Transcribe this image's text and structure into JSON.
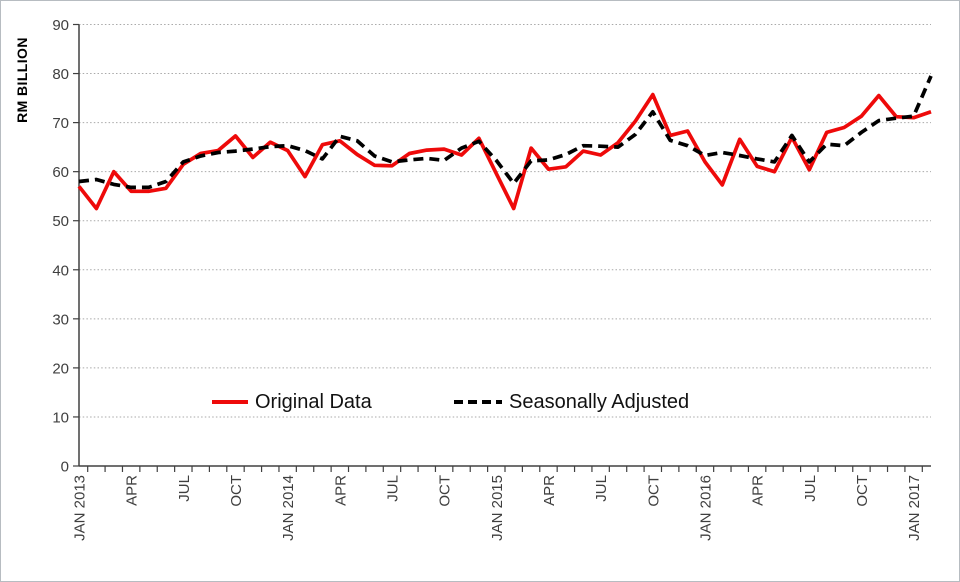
{
  "figure": {
    "background": "#ffffff",
    "border_color": "#b7bcc1",
    "axis_color": "#404040",
    "gridline_color": "#a9a9a9",
    "tick_label_color": "#3f3f3f"
  },
  "chart_data": {
    "type": "line",
    "title": "",
    "ylabel": "RM BILLION",
    "xlabel": "",
    "ylim": [
      0,
      90
    ],
    "ytick_step": 10,
    "y_tick_labels": [
      "0",
      "10",
      "20",
      "30",
      "40",
      "50",
      "60",
      "70",
      "80",
      "90"
    ],
    "grid": "horizontal-dotted",
    "n_months": 50,
    "x_range": "JAN 2013 to FEB 2017, monthly",
    "x_label_interval": 3,
    "x_tick_labels": [
      "JAN 2013",
      "APR",
      "JUL",
      "OCT",
      "JAN 2014",
      "APR",
      "JUL",
      "OCT",
      "JAN 2015",
      "APR",
      "JUL",
      "OCT",
      "JAN 2016",
      "APR",
      "JUL",
      "OCT",
      "JAN 2017"
    ],
    "legend_position": "inside-bottom-center",
    "series": [
      {
        "name": "Original Data",
        "style": "solid",
        "color": "#ee0a0a",
        "values": [
          57.0,
          52.5,
          60.0,
          56.0,
          56.0,
          56.6,
          61.5,
          63.7,
          64.3,
          67.3,
          62.9,
          66.0,
          64.3,
          59.0,
          65.5,
          66.3,
          63.5,
          61.3,
          61.2,
          63.7,
          64.4,
          64.6,
          63.4,
          66.8,
          59.6,
          52.5,
          64.8,
          60.5,
          61.0,
          64.2,
          63.4,
          65.9,
          70.3,
          75.7,
          67.4,
          68.3,
          62.0,
          57.3,
          66.6,
          61.1,
          60.0,
          67.0,
          60.4,
          68.0,
          69.0,
          71.3,
          75.5,
          71.2,
          71.0,
          72.2
        ]
      },
      {
        "name": "Seasonally Adjusted",
        "style": "dashed",
        "color": "#000000",
        "values": [
          58.0,
          58.4,
          57.4,
          56.8,
          56.8,
          58.0,
          62.0,
          63.2,
          63.9,
          64.2,
          64.6,
          65.1,
          65.3,
          64.3,
          62.6,
          67.2,
          66.3,
          63.2,
          62.0,
          62.4,
          62.7,
          62.3,
          64.8,
          66.2,
          62.3,
          57.6,
          62.2,
          62.4,
          63.5,
          65.3,
          65.2,
          65.0,
          67.6,
          72.2,
          66.4,
          65.3,
          63.3,
          63.9,
          63.3,
          62.6,
          62.0,
          67.4,
          62.0,
          65.6,
          65.3,
          68.0,
          70.4,
          70.9,
          71.3,
          79.5
        ]
      }
    ]
  }
}
